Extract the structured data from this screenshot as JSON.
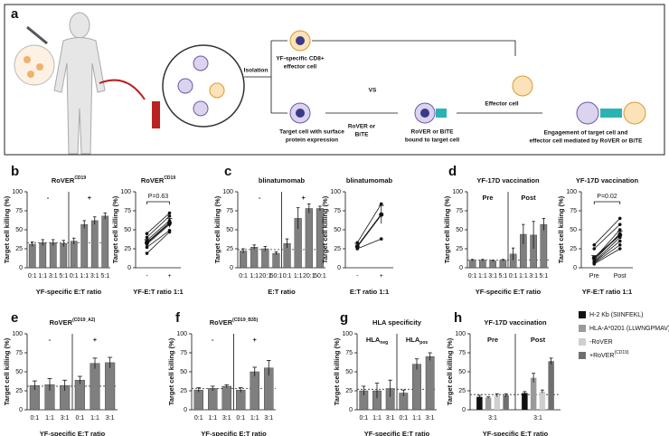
{
  "panel_labels": [
    "a",
    "b",
    "c",
    "d",
    "e",
    "f",
    "g",
    "h"
  ],
  "panel_a": {
    "isolation": "Isolation",
    "effector_line1": "YF-specific CD8+",
    "effector_line2": "effector cell",
    "target_line1": "Target cell with surface",
    "target_line2": "protein expression",
    "vs": "VS",
    "rover_line1": "RoVER or",
    "rover_line2": "BiTE",
    "bound_line1": "RoVER or BiTE",
    "bound_line2": "bound to target cell",
    "effector_cell": "Effector cell",
    "engage_line1": "Engagement of target cell and",
    "engage_line2": "effector cell mediated by RoVER or BiTE"
  },
  "chart_data": [
    {
      "type": "bar",
      "title": "RoVER",
      "title_sup": "CD19",
      "ylabel": "Target cell killing (%)",
      "xlabel": "YF-specific E:T ratio",
      "ylim": [
        0,
        100
      ],
      "yticks": [
        0,
        25,
        50,
        75,
        100
      ],
      "reference": 33,
      "color": "#7f7f7f",
      "groups": [
        {
          "label": "-",
          "categories": [
            "0:1",
            "1:1",
            "3:1",
            "5:1"
          ],
          "values": [
            31,
            33,
            33,
            32
          ],
          "errors": [
            3,
            4,
            4,
            4
          ]
        },
        {
          "label": "+",
          "categories": [
            "0:1",
            "1:1",
            "3:1",
            "5:1"
          ],
          "values": [
            35,
            57,
            62,
            68
          ],
          "errors": [
            4,
            5,
            5,
            4
          ]
        }
      ]
    },
    {
      "type": "paired",
      "title": "RoVER",
      "title_sup": "CD19",
      "ylabel": "Target cell killing (%)",
      "xlabel": "YF-E:T ratio 1:1",
      "ylim": [
        0,
        100
      ],
      "yticks": [
        0,
        25,
        50,
        75,
        100
      ],
      "categories": [
        "-",
        "+"
      ],
      "annotation": "P=0.63",
      "color": "#111111",
      "series": [
        {
          "values": [
            45,
            72
          ]
        },
        {
          "values": [
            40,
            68
          ]
        },
        {
          "values": [
            36,
            62
          ]
        },
        {
          "values": [
            31,
            57
          ]
        },
        {
          "values": [
            27,
            49
          ]
        },
        {
          "values": [
            19,
            47
          ]
        }
      ],
      "mean": {
        "values": [
          33,
          59
        ],
        "errors": [
          4,
          6
        ]
      }
    },
    {
      "type": "bar",
      "title": "blinatumomab",
      "ylabel": "Target cell killing (%)",
      "xlabel": "E:T ratio",
      "ylim": [
        0,
        100
      ],
      "yticks": [
        0,
        25,
        50,
        75,
        100
      ],
      "reference": 24,
      "color": "#7f7f7f",
      "groups": [
        {
          "label": "-",
          "categories": [
            "0:1",
            "1:1",
            "20:1",
            "50:1"
          ],
          "values": [
            22,
            27,
            25,
            19
          ],
          "errors": [
            3,
            3,
            3,
            2
          ]
        },
        {
          "label": "+",
          "categories": [
            "0:1",
            "1:1",
            "20:1",
            "50:1"
          ],
          "values": [
            32,
            65,
            78,
            78
          ],
          "errors": [
            6,
            14,
            6,
            3
          ]
        }
      ]
    },
    {
      "type": "paired",
      "title": "blinatumomab",
      "ylabel": "Target cell killing (%)",
      "xlabel": "E:T ratio 1:1",
      "ylim": [
        0,
        100
      ],
      "yticks": [
        0,
        25,
        50,
        75,
        100
      ],
      "categories": [
        "-",
        "+"
      ],
      "color": "#111111",
      "series": [
        {
          "values": [
            33,
            84
          ]
        },
        {
          "values": [
            25,
            38
          ]
        }
      ],
      "mean": {
        "values": [
          28,
          70
        ],
        "errors": [
          4,
          12
        ]
      }
    },
    {
      "type": "bar",
      "title": "YF-17D vaccination",
      "ylabel": "Target cell killing (%)",
      "xlabel": "YF-specific E:T ratio",
      "ylim": [
        0,
        100
      ],
      "yticks": [
        0,
        25,
        50,
        75,
        100
      ],
      "reference": 10,
      "color": "#7f7f7f",
      "groups": [
        {
          "label": "Pre",
          "categories": [
            "0:1",
            "1:1",
            "3:1",
            "5:1"
          ],
          "values": [
            10,
            10,
            9,
            10
          ],
          "errors": [
            1,
            1,
            1,
            1
          ]
        },
        {
          "label": "Post",
          "categories": [
            "0:1",
            "1:1",
            "3:1",
            "5:1"
          ],
          "values": [
            18,
            44,
            43,
            57
          ],
          "errors": [
            8,
            13,
            18,
            8
          ]
        }
      ]
    },
    {
      "type": "paired",
      "title": "YF-17D vaccination",
      "ylabel": "Target cell killing (%)",
      "xlabel": "YF-E:T ratio 1:1",
      "ylim": [
        0,
        100
      ],
      "yticks": [
        0,
        25,
        50,
        75,
        100
      ],
      "categories": [
        "Pre",
        "Post"
      ],
      "annotation": "P=0.02",
      "color": "#111111",
      "series": [
        {
          "values": [
            30,
            65
          ]
        },
        {
          "values": [
            25,
            57
          ]
        },
        {
          "values": [
            12,
            50
          ]
        },
        {
          "values": [
            10,
            45
          ]
        },
        {
          "values": [
            8,
            40
          ]
        },
        {
          "values": [
            7,
            35
          ]
        },
        {
          "values": [
            6,
            30
          ]
        },
        {
          "values": [
            5,
            25
          ]
        }
      ],
      "mean": {
        "values": [
          13,
          43
        ],
        "errors": [
          3,
          5
        ]
      }
    },
    {
      "type": "bar",
      "title": "RoVER",
      "title_sup": "(CD19_A2)",
      "ylabel": "Target cell killing (%)",
      "xlabel": "YF-specific E:T ratio",
      "ylim": [
        0,
        100
      ],
      "yticks": [
        0,
        25,
        50,
        75,
        100
      ],
      "reference": 31,
      "color": "#7f7f7f",
      "groups": [
        {
          "label": "-",
          "categories": [
            "0:1",
            "1:1",
            "3:1"
          ],
          "values": [
            32,
            33,
            32
          ],
          "errors": [
            6,
            8,
            7
          ]
        },
        {
          "label": "+",
          "categories": [
            "0:1",
            "1:1",
            "3:1"
          ],
          "values": [
            39,
            61,
            62
          ],
          "errors": [
            5,
            7,
            7
          ]
        }
      ]
    },
    {
      "type": "bar",
      "title": "RoVER",
      "title_sup": "(CD19_B35)",
      "ylabel": "Target cell killing (%)",
      "xlabel": "YF-specific E:T ratio",
      "ylim": [
        0,
        100
      ],
      "yticks": [
        0,
        25,
        50,
        75,
        100
      ],
      "reference": 28,
      "color": "#7f7f7f",
      "groups": [
        {
          "label": "-",
          "categories": [
            "0:1",
            "1:1",
            "3:1"
          ],
          "values": [
            26,
            28,
            31
          ],
          "errors": [
            3,
            3,
            2
          ]
        },
        {
          "label": "+",
          "categories": [
            "0:1",
            "1:1",
            "3:1"
          ],
          "values": [
            26,
            50,
            55
          ],
          "errors": [
            3,
            6,
            10
          ]
        }
      ]
    },
    {
      "type": "bar",
      "title": "HLA specificity",
      "ylabel": "Target cell killing (%)",
      "xlabel": "YF-specific E:T ratio",
      "ylim": [
        0,
        100
      ],
      "yticks": [
        0,
        25,
        50,
        75,
        100
      ],
      "reference": 27,
      "color": "#7f7f7f",
      "groups": [
        {
          "label": "HLA",
          "label_sub": "neg",
          "categories": [
            "0:1",
            "1:1",
            "3:1"
          ],
          "values": [
            25,
            25,
            28
          ],
          "errors": [
            6,
            10,
            11
          ]
        },
        {
          "label": "HLA",
          "label_sub": "pos",
          "categories": [
            "0:1",
            "1:1",
            "3:1"
          ],
          "values": [
            22,
            60,
            70
          ],
          "errors": [
            4,
            7,
            5
          ]
        }
      ]
    },
    {
      "type": "grouped_bar",
      "title": "YF-17D vaccination",
      "ylabel": "Target cell killing (%)",
      "xlabel": "YF-specific E:T ratio",
      "ylim": [
        0,
        100
      ],
      "yticks": [
        0,
        25,
        50,
        75,
        100
      ],
      "reference": 20,
      "groups": [
        "Pre",
        "Post"
      ],
      "categories": [
        "3:1",
        "3:1"
      ],
      "series": [
        {
          "name": "H-2 Kb (SIINFEKL)",
          "color": "#111111",
          "values": [
            17,
            22
          ],
          "errors": [
            2,
            2
          ]
        },
        {
          "name": "HLA-A*0201 (LLWNGPMAV)",
          "color": "#9a9a9a",
          "values": [
            16,
            42
          ],
          "errors": [
            1,
            6
          ]
        },
        {
          "name": "-RoVER",
          "color": "#cfcfcf",
          "values": [
            19,
            24
          ],
          "errors": [
            2,
            2
          ]
        },
        {
          "name": "+RoVER",
          "name_sup": "(CD19)",
          "color": "#6f6f6f",
          "values": [
            19,
            64
          ],
          "errors": [
            2,
            4
          ]
        }
      ]
    }
  ]
}
